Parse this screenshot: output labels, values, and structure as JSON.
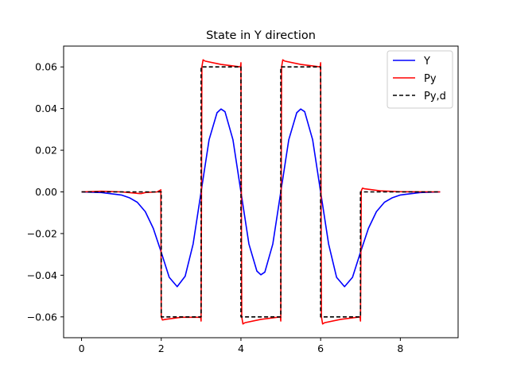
{
  "chart_data": {
    "type": "line",
    "title": "State in Y direction",
    "xlabel": "",
    "ylabel": "",
    "xlim": [
      -0.45,
      9.45
    ],
    "ylim": [
      -0.07,
      0.07
    ],
    "xticks": [
      0,
      2,
      4,
      6,
      8
    ],
    "yticks": [
      -0.06,
      -0.04,
      -0.02,
      0.0,
      0.02,
      0.04,
      0.06
    ],
    "ytick_labels": [
      "−0.06",
      "−0.04",
      "−0.02",
      "0.00",
      "0.02",
      "0.04",
      "0.06"
    ],
    "grid": false,
    "legend_placement": "top-right",
    "series": [
      {
        "name": "Y",
        "color": "#0000ff",
        "style": "solid",
        "x": [
          0,
          0.5,
          1.0,
          1.2,
          1.4,
          1.6,
          1.8,
          2.0,
          2.2,
          2.4,
          2.6,
          2.8,
          3.0,
          3.2,
          3.4,
          3.5,
          3.6,
          3.8,
          4.0,
          4.2,
          4.4,
          4.5,
          4.6,
          4.8,
          5.0,
          5.2,
          5.4,
          5.5,
          5.6,
          5.8,
          6.0,
          6.2,
          6.4,
          6.6,
          6.8,
          7.0,
          7.2,
          7.4,
          7.6,
          7.8,
          8.0,
          8.5,
          9.0
        ],
        "y": [
          0.0,
          -0.0003,
          -0.0015,
          -0.0028,
          -0.005,
          -0.0095,
          -0.0175,
          -0.029,
          -0.041,
          -0.0455,
          -0.0405,
          -0.025,
          0.0,
          0.025,
          0.038,
          0.0398,
          0.0385,
          0.025,
          0.0,
          -0.025,
          -0.038,
          -0.0398,
          -0.0385,
          -0.025,
          0.0,
          0.025,
          0.038,
          0.0398,
          0.0385,
          0.025,
          0.0,
          -0.025,
          -0.041,
          -0.0455,
          -0.041,
          -0.029,
          -0.0175,
          -0.0095,
          -0.005,
          -0.0028,
          -0.0015,
          -0.0003,
          0.0
        ]
      },
      {
        "name": "Py",
        "color": "#ff0000",
        "style": "solid",
        "x": [
          0,
          0.5,
          1.0,
          1.45,
          1.5,
          1.6,
          1.9,
          1.99,
          2.0,
          2.03,
          2.1,
          2.5,
          2.99,
          3.0,
          3.02,
          3.05,
          3.1,
          3.5,
          3.99,
          4.0,
          4.02,
          4.05,
          4.1,
          4.5,
          4.99,
          5.0,
          5.02,
          5.05,
          5.1,
          5.5,
          5.99,
          6.0,
          6.02,
          6.05,
          6.1,
          6.5,
          6.99,
          7.0,
          7.02,
          7.05,
          7.1,
          7.5,
          8.0,
          9.0
        ],
        "y": [
          0.0,
          0.0003,
          0.0,
          -0.0008,
          -0.0008,
          -0.0003,
          0.0,
          0.001,
          -0.06,
          -0.0615,
          -0.0612,
          -0.0602,
          -0.0602,
          -0.062,
          0.06,
          0.0634,
          0.0628,
          0.0612,
          0.06,
          0.062,
          -0.06,
          -0.0634,
          -0.0628,
          -0.0612,
          -0.06,
          -0.062,
          0.06,
          0.0634,
          0.0628,
          0.0612,
          0.06,
          0.062,
          -0.06,
          -0.0634,
          -0.0628,
          -0.0612,
          -0.06,
          -0.062,
          0.0005,
          0.0018,
          0.0015,
          0.0005,
          0.0001,
          0.0
        ]
      },
      {
        "name": "Py,d",
        "color": "#000000",
        "style": "dashed",
        "x": [
          0,
          2,
          2,
          3,
          3,
          4,
          4,
          5,
          5,
          6,
          6,
          7,
          7,
          9
        ],
        "y": [
          0,
          0,
          -0.06,
          -0.06,
          0.06,
          0.06,
          -0.06,
          -0.06,
          0.06,
          0.06,
          -0.06,
          -0.06,
          0,
          0
        ]
      }
    ]
  }
}
